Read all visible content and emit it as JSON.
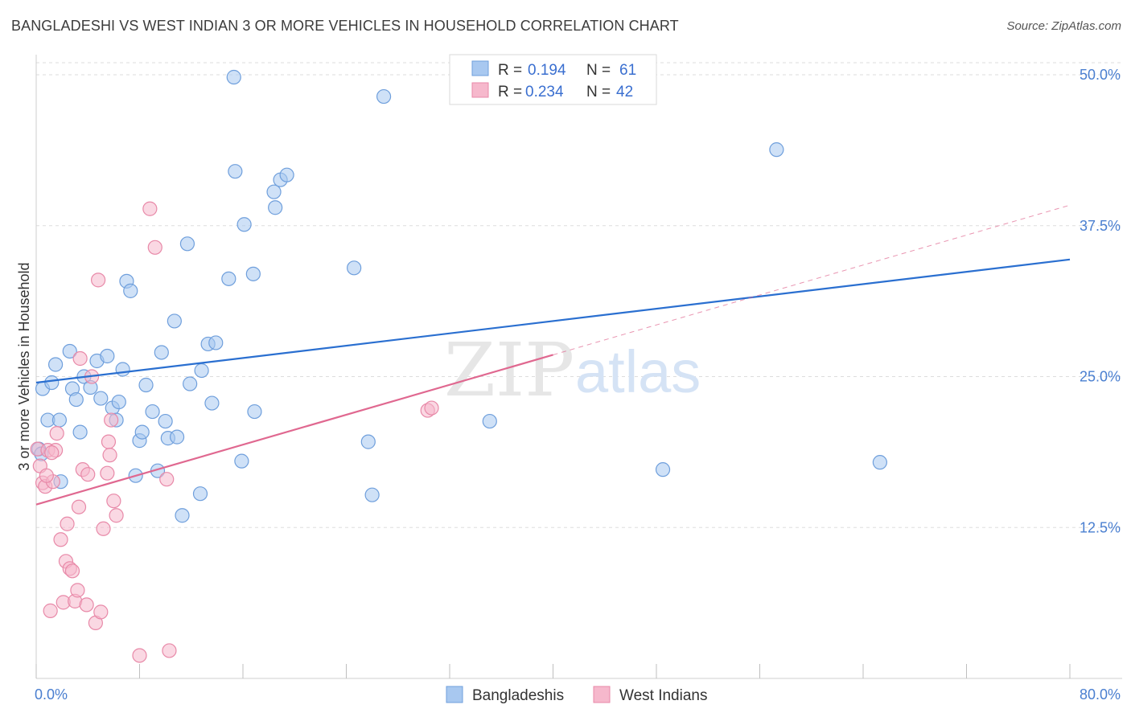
{
  "header": {
    "title": "BANGLADESHI VS WEST INDIAN 3 OR MORE VEHICLES IN HOUSEHOLD CORRELATION CHART",
    "source": "Source: ZipAtlas.com"
  },
  "watermark": {
    "zip": "ZIP",
    "atlas": "atlas"
  },
  "legend_top": {
    "rows": [
      {
        "r_label": "R =",
        "r_value": "0.194",
        "n_label": "N =",
        "n_value": "61",
        "color": "#a8c8f0"
      },
      {
        "r_label": "R =",
        "r_value": "0.234",
        "n_label": "N =",
        "n_value": "42",
        "color": "#f6b8cc"
      }
    ]
  },
  "legend_bottom": [
    "Bangladeshis",
    "West Indians"
  ],
  "chart_data": {
    "type": "scatter",
    "title": "BANGLADESHI VS WEST INDIAN 3 OR MORE VEHICLES IN HOUSEHOLD CORRELATION CHART",
    "xlabel": "",
    "ylabel": "3 or more Vehicles in Household",
    "xlim": [
      0,
      80
    ],
    "ylim": [
      0,
      51
    ],
    "x_tick_labels": [
      "0.0%",
      "80.0%"
    ],
    "y_ticks": [
      12.5,
      25.0,
      37.5,
      50.0
    ],
    "y_tick_labels": [
      "12.5%",
      "25.0%",
      "37.5%",
      "50.0%"
    ],
    "grid": true,
    "series": [
      {
        "name": "Bangladeshis",
        "color": "#a8c8f0",
        "edge": "#6f9fdc",
        "trend": {
          "x0": 0,
          "y0": 24.5,
          "x1": 80,
          "y1": 34.7,
          "color": "#2a6fd0",
          "dashed_from": null
        },
        "points": [
          [
            0.5,
            24.0
          ],
          [
            0.9,
            21.4
          ],
          [
            1.2,
            24.5
          ],
          [
            1.5,
            26.0
          ],
          [
            1.8,
            21.4
          ],
          [
            1.9,
            16.3
          ],
          [
            2.6,
            27.1
          ],
          [
            2.8,
            24.0
          ],
          [
            3.1,
            23.1
          ],
          [
            3.4,
            20.4
          ],
          [
            3.7,
            25.0
          ],
          [
            4.2,
            24.1
          ],
          [
            4.7,
            26.3
          ],
          [
            5.0,
            23.2
          ],
          [
            5.5,
            26.7
          ],
          [
            5.9,
            22.4
          ],
          [
            6.2,
            21.4
          ],
          [
            6.4,
            22.9
          ],
          [
            6.7,
            25.6
          ],
          [
            7.0,
            32.9
          ],
          [
            7.3,
            32.1
          ],
          [
            7.7,
            16.8
          ],
          [
            8.0,
            19.7
          ],
          [
            8.2,
            20.4
          ],
          [
            8.5,
            24.3
          ],
          [
            9.0,
            22.1
          ],
          [
            9.4,
            17.2
          ],
          [
            9.7,
            27.0
          ],
          [
            10.0,
            21.3
          ],
          [
            10.2,
            19.9
          ],
          [
            10.7,
            29.6
          ],
          [
            10.9,
            20.0
          ],
          [
            11.3,
            13.5
          ],
          [
            11.7,
            36.0
          ],
          [
            11.9,
            24.4
          ],
          [
            12.7,
            15.3
          ],
          [
            12.8,
            25.5
          ],
          [
            13.3,
            27.7
          ],
          [
            13.6,
            22.8
          ],
          [
            13.9,
            27.8
          ],
          [
            14.9,
            33.1
          ],
          [
            15.3,
            49.8
          ],
          [
            15.4,
            42.0
          ],
          [
            15.9,
            18.0
          ],
          [
            16.1,
            37.6
          ],
          [
            16.8,
            33.5
          ],
          [
            16.9,
            22.1
          ],
          [
            18.4,
            40.3
          ],
          [
            18.5,
            39.0
          ],
          [
            18.9,
            41.3
          ],
          [
            19.4,
            41.7
          ],
          [
            24.6,
            34.0
          ],
          [
            25.7,
            19.6
          ],
          [
            26.0,
            15.2
          ],
          [
            26.9,
            48.2
          ],
          [
            35.1,
            21.3
          ],
          [
            48.5,
            17.3
          ],
          [
            57.3,
            43.8
          ],
          [
            65.3,
            17.9
          ],
          [
            0.2,
            19.0
          ],
          [
            0.4,
            18.6
          ]
        ]
      },
      {
        "name": "West Indians",
        "color": "#f6b8cc",
        "edge": "#e889a8",
        "trend": {
          "x0": 0,
          "y0": 14.4,
          "x1": 40,
          "y1": 26.8,
          "color": "#e06890",
          "dashed_to": [
            80,
            39.2
          ]
        },
        "points": [
          [
            0.1,
            19.0
          ],
          [
            0.3,
            17.6
          ],
          [
            0.5,
            16.2
          ],
          [
            0.7,
            15.9
          ],
          [
            0.9,
            18.9
          ],
          [
            1.1,
            5.6
          ],
          [
            1.3,
            16.3
          ],
          [
            1.5,
            18.9
          ],
          [
            1.6,
            20.3
          ],
          [
            1.9,
            11.5
          ],
          [
            2.1,
            6.3
          ],
          [
            2.3,
            9.7
          ],
          [
            2.4,
            12.8
          ],
          [
            2.6,
            9.1
          ],
          [
            2.8,
            8.9
          ],
          [
            3.0,
            6.4
          ],
          [
            3.2,
            7.3
          ],
          [
            3.3,
            14.2
          ],
          [
            3.4,
            26.5
          ],
          [
            3.6,
            17.3
          ],
          [
            3.9,
            6.1
          ],
          [
            4.0,
            16.9
          ],
          [
            4.3,
            25.0
          ],
          [
            4.6,
            4.6
          ],
          [
            4.8,
            33.0
          ],
          [
            5.0,
            5.5
          ],
          [
            5.2,
            12.4
          ],
          [
            5.5,
            17.0
          ],
          [
            5.6,
            19.6
          ],
          [
            5.7,
            18.5
          ],
          [
            5.8,
            21.4
          ],
          [
            6.0,
            14.7
          ],
          [
            6.2,
            13.5
          ],
          [
            8.0,
            1.9
          ],
          [
            8.8,
            38.9
          ],
          [
            9.2,
            35.7
          ],
          [
            10.1,
            16.5
          ],
          [
            10.3,
            2.3
          ],
          [
            0.8,
            16.8
          ],
          [
            30.3,
            22.2
          ],
          [
            30.6,
            22.4
          ],
          [
            1.2,
            18.7
          ]
        ]
      }
    ]
  }
}
